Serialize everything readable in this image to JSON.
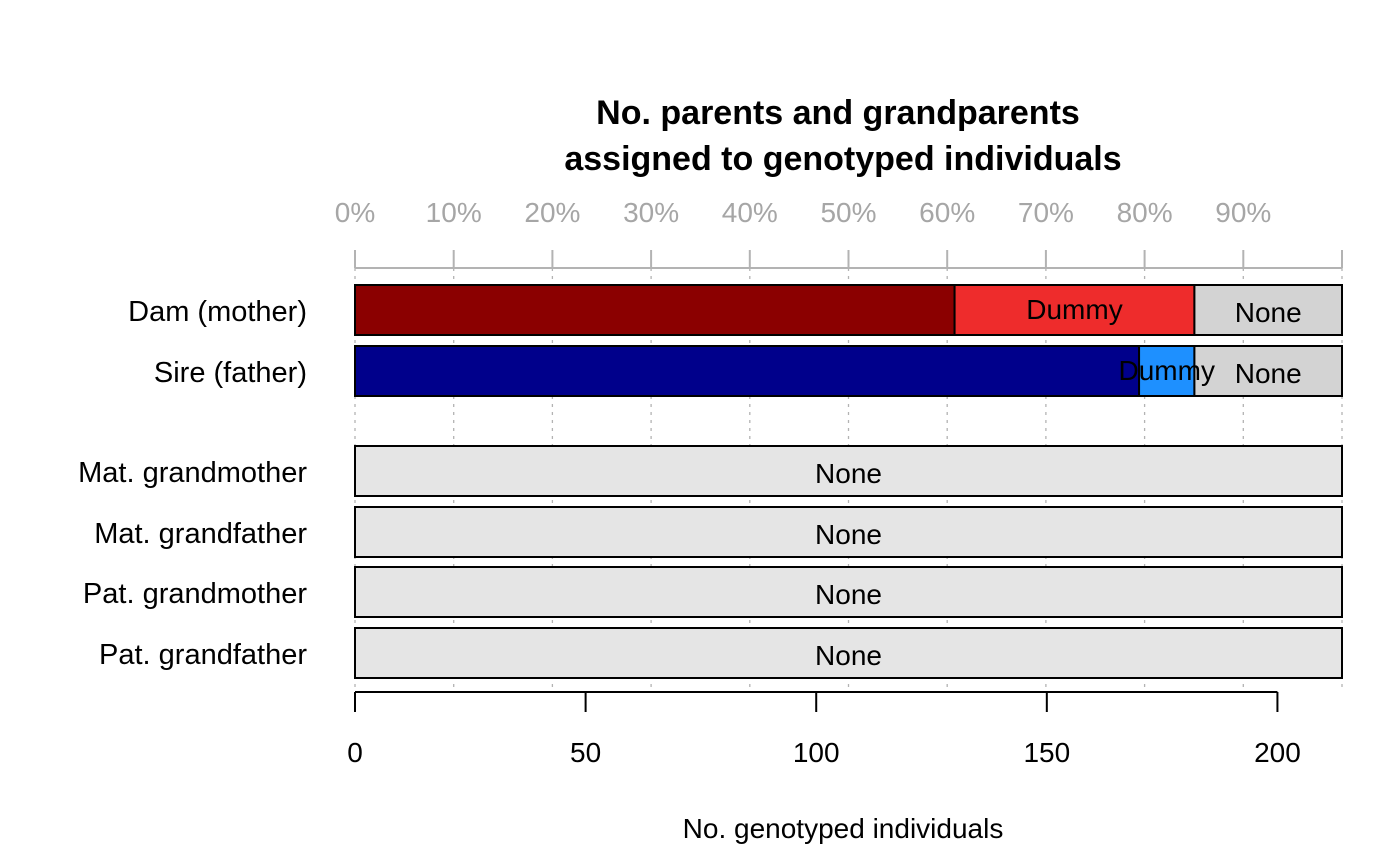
{
  "chart_data": {
    "type": "bar",
    "orientation": "horizontal",
    "stacked": true,
    "title_line1": "No. parents and grandparents",
    "title_line2": "assigned to genotyped individuals",
    "xlabel": "No. genotyped individuals",
    "xlim": [
      0,
      214
    ],
    "x_ticks": [
      0,
      50,
      100,
      150,
      200
    ],
    "pct_ticks": [
      "0%",
      "10%",
      "20%",
      "30%",
      "40%",
      "50%",
      "60%",
      "70%",
      "80%",
      "90%"
    ],
    "grid": "vertical dotted",
    "rows": [
      {
        "label": "Dam (mother)",
        "segments": [
          {
            "value": 130,
            "color": "#8b0000",
            "label": ""
          },
          {
            "value": 52,
            "color": "#ee2c2c",
            "label": "Dummy"
          },
          {
            "value": 32,
            "color": "#d3d3d3",
            "label": "None"
          }
        ]
      },
      {
        "label": "Sire (father)",
        "segments": [
          {
            "value": 170,
            "color": "#00008b",
            "label": ""
          },
          {
            "value": 12,
            "color": "#1e90ff",
            "label": "Dummy"
          },
          {
            "value": 32,
            "color": "#d3d3d3",
            "label": "None"
          }
        ]
      },
      {
        "label": "Mat. grandmother",
        "segments": [
          {
            "value": 214,
            "color": "#e5e5e5",
            "label": "None"
          }
        ]
      },
      {
        "label": "Mat. grandfather",
        "segments": [
          {
            "value": 214,
            "color": "#e5e5e5",
            "label": "None"
          }
        ]
      },
      {
        "label": "Pat. grandmother",
        "segments": [
          {
            "value": 214,
            "color": "#e5e5e5",
            "label": "None"
          }
        ]
      },
      {
        "label": "Pat. grandfather",
        "segments": [
          {
            "value": 214,
            "color": "#e5e5e5",
            "label": "None"
          }
        ]
      }
    ]
  }
}
